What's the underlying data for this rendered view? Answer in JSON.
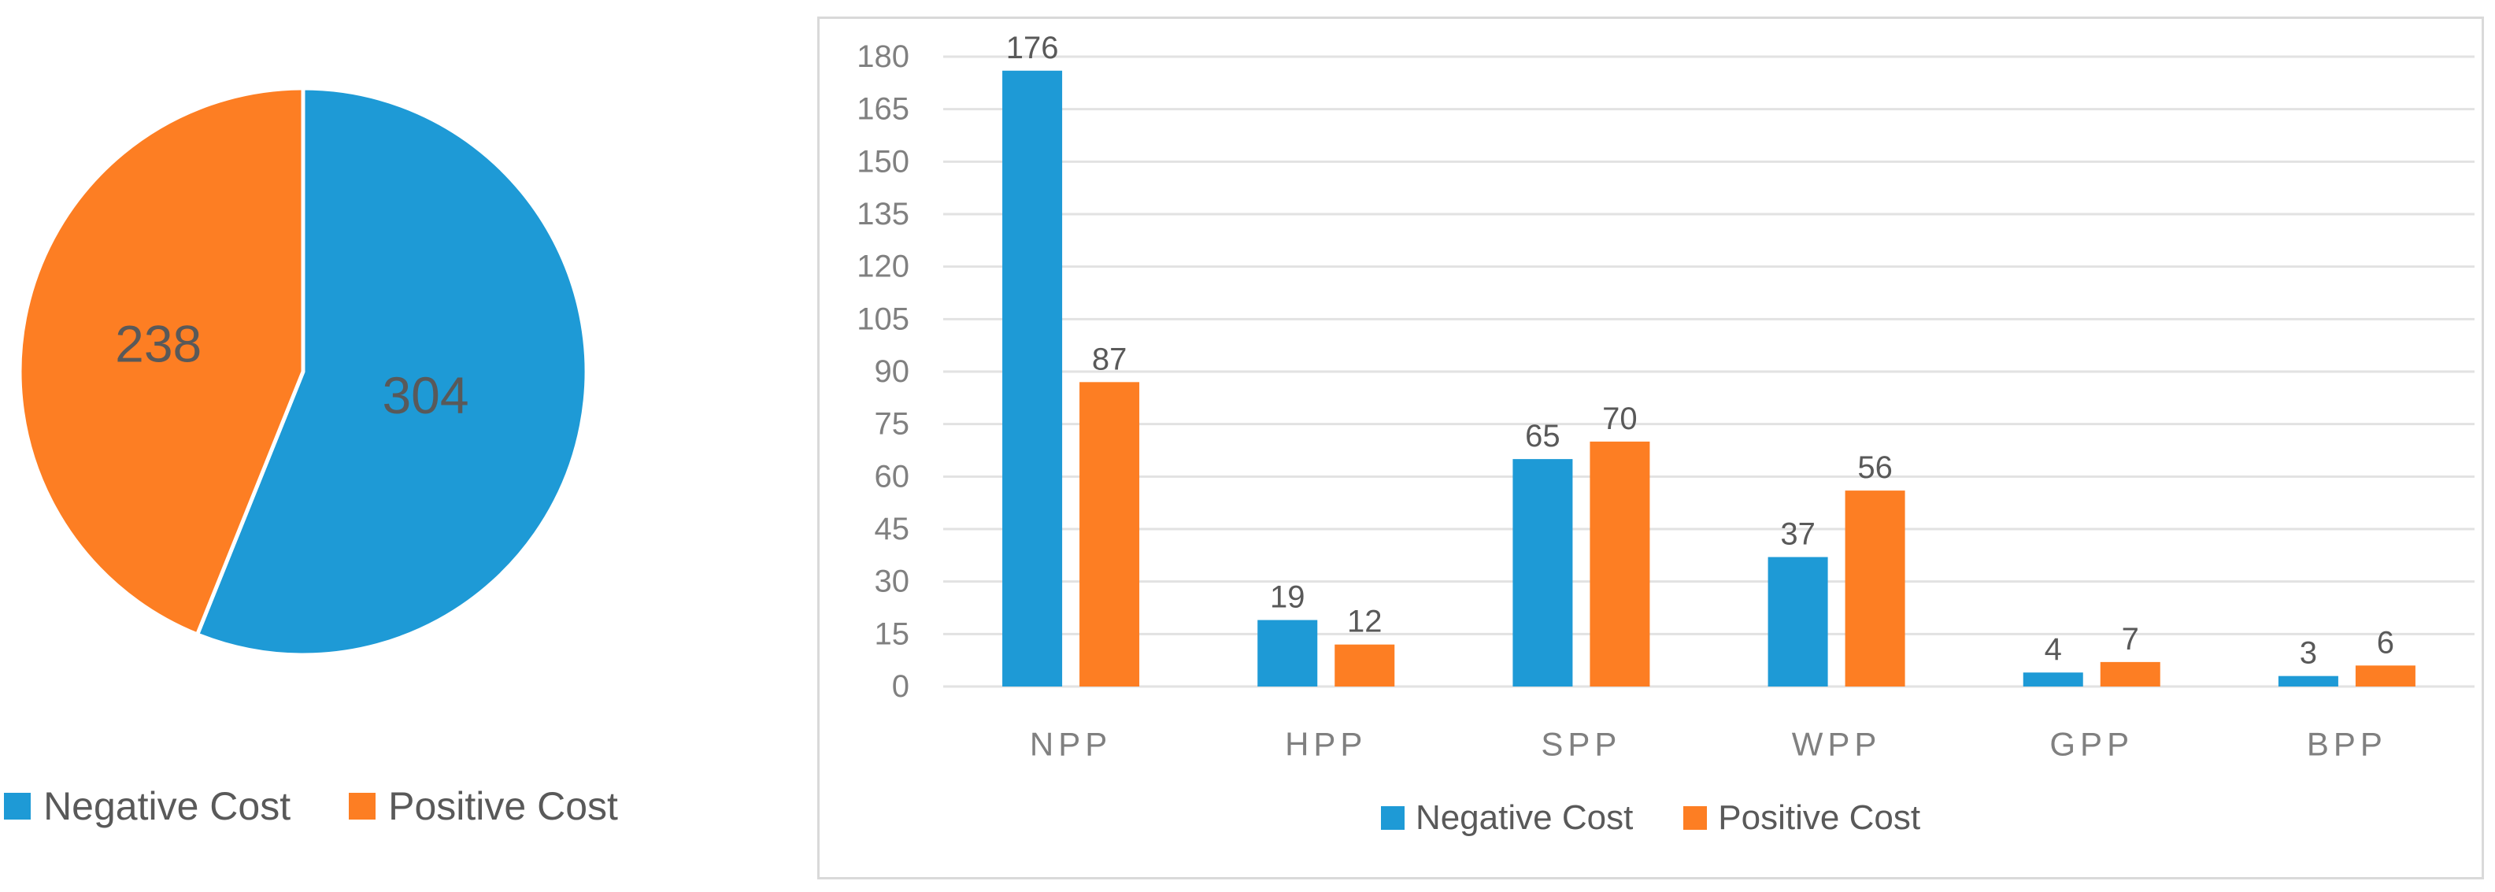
{
  "page": {
    "background": "#FFFFFF"
  },
  "colors": {
    "negative_cost": "#1E9AD6",
    "positive_cost": "#FD7E23",
    "gridline": "#E2E2E2",
    "panel_border": "#D9D9D9",
    "axis_tick_text": "#808080",
    "category_text": "#808080",
    "data_label_text": "#595959",
    "legend_text": "#595959",
    "slice_divider": "#FFFFFF"
  },
  "chart_data": [
    {
      "type": "pie",
      "title": "",
      "slices": [
        {
          "name": "Negative Cost",
          "value": 304,
          "data_label": "304",
          "color": "#1E9AD6"
        },
        {
          "name": "Positive Cost",
          "value": 238,
          "data_label": "238",
          "color": "#FD7E23"
        }
      ],
      "start_angle_deg_from_top": 0,
      "direction": "clockwise",
      "legend_position": "bottom",
      "data_labels_shown": true,
      "legend": [
        {
          "label": "Negative Cost",
          "marker": "square",
          "color": "#1E9AD6"
        },
        {
          "label": "Positive Cost",
          "marker": "square",
          "color": "#FD7E23"
        }
      ]
    },
    {
      "type": "bar",
      "title": "",
      "categories": [
        "NPP",
        "HPP",
        "SPP",
        "WPP",
        "GPP",
        "BPP"
      ],
      "series": [
        {
          "name": "Negative Cost",
          "color": "#1E9AD6",
          "values": [
            176,
            19,
            65,
            37,
            4,
            3
          ]
        },
        {
          "name": "Positive Cost",
          "color": "#FD7E23",
          "values": [
            87,
            12,
            70,
            56,
            7,
            6
          ]
        }
      ],
      "ylim": [
        0,
        180
      ],
      "ytick_step": 15,
      "yticks": [
        0,
        15,
        30,
        45,
        60,
        75,
        90,
        105,
        120,
        135,
        150,
        165,
        180
      ],
      "grid": true,
      "legend_position": "bottom",
      "data_labels_shown": true,
      "legend": [
        {
          "label": "Negative Cost",
          "marker": "square",
          "color": "#1E9AD6"
        },
        {
          "label": "Positive Cost",
          "marker": "square",
          "color": "#FD7E23"
        }
      ]
    }
  ]
}
